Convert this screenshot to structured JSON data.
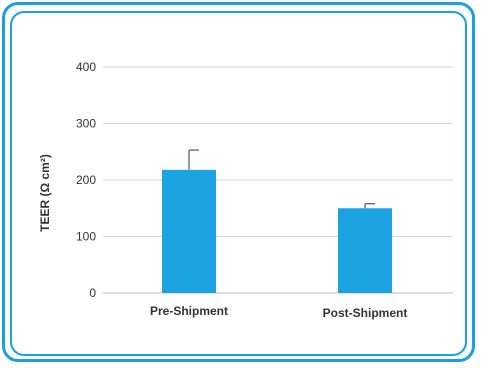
{
  "colors": {
    "border": "#1a9fe0",
    "bar": "#1aa3e0",
    "grid": "#d4d4d4",
    "axis": "#bdbdbd",
    "text": "#333333",
    "error_bar": "#555555"
  },
  "chart_data": {
    "type": "bar",
    "title": "",
    "xlabel": "",
    "ylabel": "TEER (Ω cm²)",
    "categories": [
      "Pre-Shipment",
      "Post-Shipment"
    ],
    "values": [
      218,
      150
    ],
    "errors": [
      35,
      8
    ],
    "ylim": [
      0,
      400
    ],
    "yticks": [
      "0",
      "100",
      "200",
      "300",
      "400"
    ],
    "grid": true,
    "legend": "none"
  }
}
